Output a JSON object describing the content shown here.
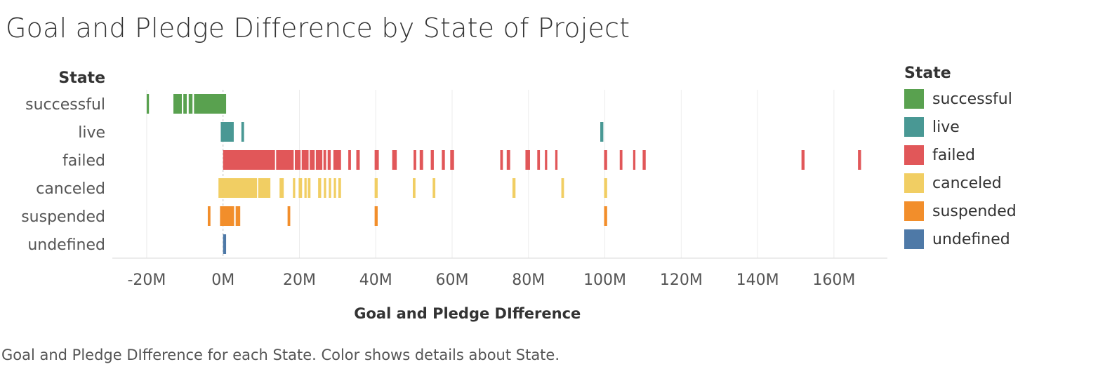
{
  "title": "Goal and Pledge Difference by State of Project",
  "caption": "Goal and Pledge DIfference for each State.  Color shows details about State.",
  "legend": {
    "title": "State",
    "items": [
      {
        "label": "successful",
        "color": "#59a14f"
      },
      {
        "label": "live",
        "color": "#499894"
      },
      {
        "label": "failed",
        "color": "#e15759"
      },
      {
        "label": "canceled",
        "color": "#f1ce63"
      },
      {
        "label": "suspended",
        "color": "#f28e2b"
      },
      {
        "label": "undefined",
        "color": "#4e79a7"
      }
    ]
  },
  "chart_data": {
    "type": "bar",
    "title": "Goal and Pledge Difference by State of Project",
    "xlabel": "Goal and Pledge DIfference",
    "ylabel": "State",
    "xlim": [
      -29,
      174
    ],
    "x_unit": "M",
    "xticks": [
      -20,
      0,
      20,
      40,
      60,
      80,
      100,
      120,
      140,
      160
    ],
    "xtick_labels": [
      "-20M",
      "0M",
      "20M",
      "40M",
      "60M",
      "80M",
      "100M",
      "120M",
      "140M",
      "160M"
    ],
    "grid": true,
    "legend_position": "right",
    "categories": [
      "successful",
      "live",
      "failed",
      "canceled",
      "suspended",
      "undefined"
    ],
    "segments": {
      "successful": [
        [
          -20,
          -19.4
        ],
        [
          -13,
          -10.8
        ],
        [
          -10.4,
          -9.5
        ],
        [
          -9.0,
          -8.0
        ],
        [
          -7.6,
          0.8
        ]
      ],
      "live": [
        [
          -0.6,
          2.8
        ],
        [
          4.8,
          5.5
        ],
        [
          98.8,
          99.6
        ]
      ],
      "failed": [
        [
          0,
          13.6
        ],
        [
          13.9,
          18.5
        ],
        [
          18.8,
          20.3
        ],
        [
          20.6,
          22.4
        ],
        [
          22.7,
          24.0
        ],
        [
          24.3,
          26.0
        ],
        [
          26.3,
          27.0
        ],
        [
          27.4,
          28.2
        ],
        [
          28.9,
          30.9
        ],
        [
          32.8,
          33.5
        ],
        [
          34.9,
          35.8
        ],
        [
          39.7,
          40.8
        ],
        [
          44.3,
          45.5
        ],
        [
          49.9,
          50.6
        ],
        [
          51.5,
          52.4
        ],
        [
          54.4,
          55.2
        ],
        [
          57.3,
          58.1
        ],
        [
          59.5,
          60.5
        ],
        [
          72.6,
          73.3
        ],
        [
          74.3,
          75.2
        ],
        [
          79.2,
          80.4
        ],
        [
          82.3,
          83.0
        ],
        [
          84.3,
          84.9
        ],
        [
          87.0,
          87.6
        ],
        [
          99.8,
          100.6
        ],
        [
          103.9,
          104.6
        ],
        [
          107.4,
          108.0
        ],
        [
          109.9,
          110.7
        ],
        [
          151.5,
          152.3
        ],
        [
          166.3,
          167.1
        ]
      ],
      "canceled": [
        [
          -1.2,
          8.9
        ],
        [
          9.2,
          12.4
        ],
        [
          14.8,
          15.9
        ],
        [
          18.3,
          18.9
        ],
        [
          19.8,
          20.7
        ],
        [
          21.3,
          21.9
        ],
        [
          22.2,
          22.9
        ],
        [
          24.9,
          25.7
        ],
        [
          26.4,
          27.0
        ],
        [
          27.7,
          28.3
        ],
        [
          29.0,
          29.6
        ],
        [
          30.2,
          30.9
        ],
        [
          39.7,
          40.5
        ],
        [
          49.7,
          50.4
        ],
        [
          54.9,
          55.6
        ],
        [
          75.8,
          76.6
        ],
        [
          88.6,
          89.3
        ],
        [
          99.8,
          100.6
        ]
      ],
      "suspended": [
        [
          -4.0,
          -3.3
        ],
        [
          -0.8,
          2.9
        ],
        [
          3.3,
          4.5
        ],
        [
          16.9,
          17.6
        ],
        [
          39.7,
          40.5
        ],
        [
          99.8,
          100.6
        ]
      ],
      "undefined": [
        [
          0,
          0.8
        ]
      ]
    }
  }
}
